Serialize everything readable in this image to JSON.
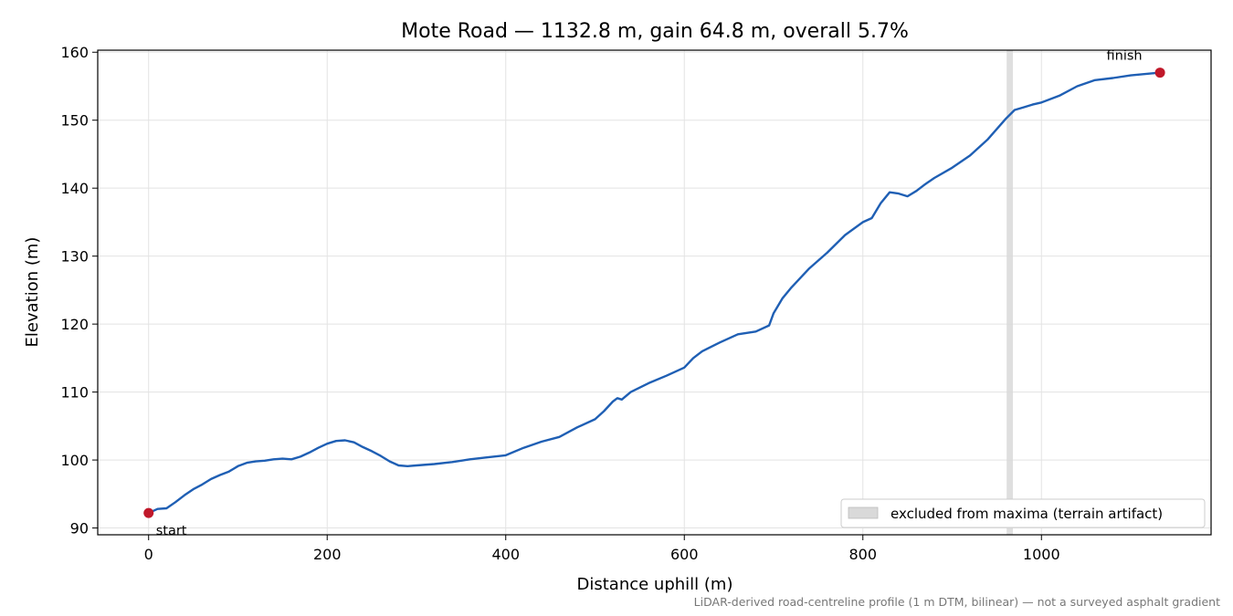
{
  "chart_data": {
    "type": "line",
    "title": "Mote Road — 1132.8 m, gain 64.8 m, overall 5.7%",
    "xlabel": "Distance uphill (m)",
    "ylabel": "Elevation (m)",
    "xlim": [
      -57,
      1190
    ],
    "ylim": [
      89,
      160.3
    ],
    "xticks": [
      0,
      200,
      400,
      600,
      800,
      1000
    ],
    "yticks": [
      90,
      100,
      110,
      120,
      130,
      140,
      150,
      160
    ],
    "xtick_labels": [
      "0",
      "200",
      "400",
      "600",
      "800",
      "1000"
    ],
    "ytick_labels": [
      "90",
      "100",
      "110",
      "120",
      "130",
      "140",
      "150",
      "160"
    ],
    "grid": true,
    "legend_position": "lower-right",
    "legend": [
      {
        "label": "excluded from maxima (terrain artifact)"
      }
    ],
    "excluded_band": {
      "x_start": 961,
      "x_end": 968
    },
    "series": [
      {
        "x": [
          0,
          10,
          20,
          30,
          40,
          50,
          60,
          70,
          80,
          90,
          100,
          110,
          120,
          130,
          140,
          150,
          160,
          170,
          180,
          190,
          200,
          210,
          220,
          230,
          240,
          250,
          260,
          270,
          280,
          290,
          300,
          320,
          340,
          360,
          380,
          400,
          420,
          440,
          460,
          480,
          500,
          510,
          520,
          525,
          530,
          540,
          560,
          580,
          600,
          610,
          620,
          640,
          660,
          680,
          695,
          700,
          710,
          720,
          740,
          760,
          780,
          800,
          810,
          820,
          830,
          840,
          850,
          860,
          870,
          880,
          900,
          920,
          940,
          960,
          970,
          980,
          990,
          1000,
          1020,
          1040,
          1060,
          1080,
          1100,
          1132.8
        ],
        "y": [
          92.2,
          92.8,
          92.9,
          93.8,
          94.8,
          95.7,
          96.4,
          97.2,
          97.8,
          98.3,
          99.1,
          99.6,
          99.8,
          99.9,
          100.1,
          100.2,
          100.1,
          100.5,
          101.1,
          101.8,
          102.4,
          102.8,
          102.9,
          102.6,
          101.9,
          101.3,
          100.6,
          99.8,
          99.2,
          99.1,
          99.2,
          99.4,
          99.7,
          100.1,
          100.4,
          100.7,
          101.8,
          102.7,
          103.4,
          104.8,
          106.0,
          107.2,
          108.6,
          109.1,
          108.9,
          110.0,
          111.3,
          112.4,
          113.6,
          115.0,
          116.0,
          117.3,
          118.5,
          118.9,
          119.8,
          121.6,
          123.8,
          125.4,
          128.2,
          130.5,
          133.1,
          135.0,
          135.6,
          137.8,
          139.4,
          139.2,
          138.8,
          139.6,
          140.6,
          141.5,
          143.0,
          144.8,
          147.2,
          150.2,
          151.5,
          151.9,
          152.3,
          152.6,
          153.6,
          155.0,
          155.9,
          156.2,
          156.6,
          157.0
        ]
      }
    ],
    "annotations": [
      {
        "text": "start",
        "x": 0,
        "y": 92.2
      },
      {
        "text": "finish",
        "x": 1132.8,
        "y": 157.0
      }
    ],
    "footnote": "LiDAR-derived road-centreline profile (1 m DTM, bilinear) — not a surveyed asphalt gradient",
    "colors": {
      "line": "#1f5fb4",
      "endpoint": "#c0182a",
      "band": "#d9d9d9",
      "grid": "#e3e3e3"
    }
  }
}
